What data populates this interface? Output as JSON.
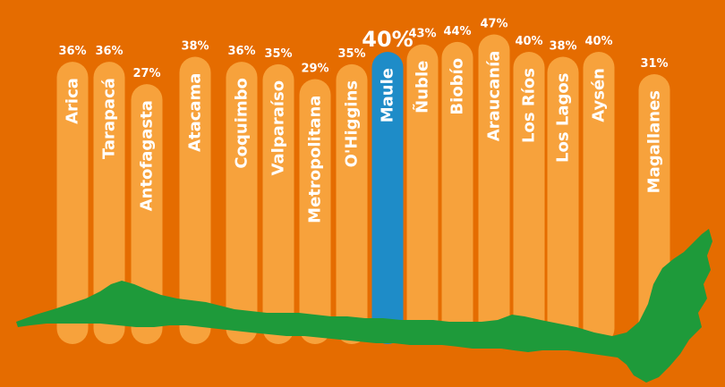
{
  "chart_data": {
    "type": "bar",
    "categories": [
      "Arica",
      "Tarapacá",
      "Antofagasta",
      "Atacama",
      "Coquimbo",
      "Valparaíso",
      "Metropolitana",
      "O'Higgins",
      "Maule",
      "Ñuble",
      "Biobío",
      "Araucanía",
      "Los Ríos",
      "Los Lagos",
      "Aysén",
      "Magallanes"
    ],
    "values": [
      36,
      36,
      27,
      38,
      36,
      35,
      29,
      35,
      40,
      43,
      44,
      47,
      40,
      38,
      40,
      31
    ],
    "value_labels": [
      "36%",
      "36%",
      "27%",
      "38%",
      "36%",
      "35%",
      "29%",
      "35%",
      "40%",
      "43%",
      "44%",
      "47%",
      "40%",
      "38%",
      "40%",
      "31%"
    ],
    "highlight": "Maule",
    "title": "",
    "xlabel": "",
    "ylabel": "",
    "colors": {
      "background": "#E56C00",
      "bar": "#F7A23C",
      "highlight_bar": "#1E8CC8",
      "map": "#1E9A3A",
      "text": "#FFFFFF"
    }
  }
}
